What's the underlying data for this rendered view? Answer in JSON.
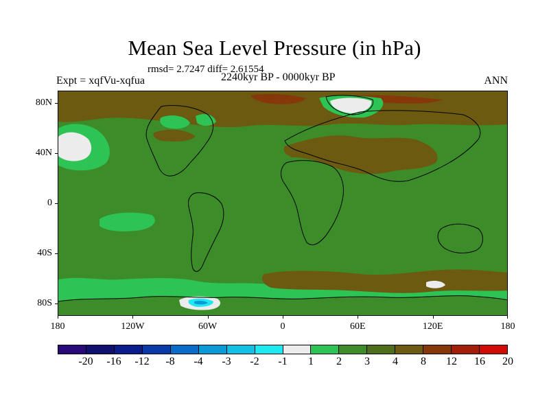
{
  "title": "Mean Sea Level Pressure (in hPa)",
  "stats": "rmsd= 2.7247 diff= 2.61554",
  "experiment": "Expt = xqfVu-xqfua",
  "period": "2240kyr BP - 0000kyr BP",
  "season": "ANN",
  "axes": {
    "y_ticks": [
      {
        "label": "80N",
        "lat": 80
      },
      {
        "label": "40N",
        "lat": 40
      },
      {
        "label": "0",
        "lat": 0
      },
      {
        "label": "40S",
        "lat": -40
      },
      {
        "label": "80S",
        "lat": -80
      }
    ],
    "x_ticks": [
      {
        "label": "180",
        "lon": -180
      },
      {
        "label": "120W",
        "lon": -120
      },
      {
        "label": "60W",
        "lon": -60
      },
      {
        "label": "0",
        "lon": 0
      },
      {
        "label": "60E",
        "lon": 60
      },
      {
        "label": "120E",
        "lon": 120
      },
      {
        "label": "180",
        "lon": 180
      }
    ]
  },
  "colorbar": {
    "labels": [
      "-20",
      "-16",
      "-12",
      "-8",
      "-4",
      "-3",
      "-2",
      "-1",
      "1",
      "2",
      "3",
      "4",
      "8",
      "12",
      "16",
      "20"
    ],
    "colors": [
      "#2a0a7a",
      "#10106e",
      "#0b1d8c",
      "#0a3aa8",
      "#0a6cc8",
      "#0a9ad8",
      "#12c0e6",
      "#1ee8f0",
      "#ececec",
      "#2ec455",
      "#3d8c2a",
      "#4e6e1c",
      "#6b5a10",
      "#86380a",
      "#a21e08",
      "#d00a05"
    ]
  },
  "map_colors": {
    "ocean_base": "#3d8c2a",
    "land_brown": "#6b5a10",
    "dark_brown": "#86380a",
    "light_green": "#2ec455",
    "white": "#ececec",
    "cyan": "#1ee8f0",
    "blue": "#0a9ad8",
    "coast": "#000000"
  }
}
